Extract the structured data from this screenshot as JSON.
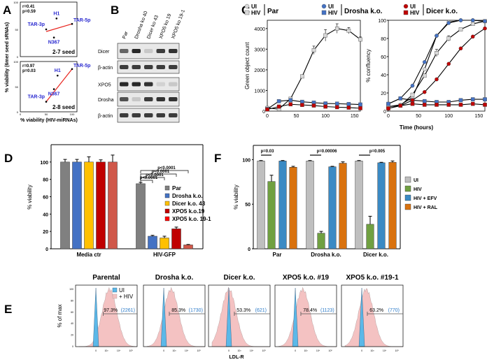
{
  "panel_labels": [
    "A",
    "B",
    "C",
    "D",
    "E",
    "F"
  ],
  "chart_data": [
    {
      "id": "A",
      "type": "scatter",
      "xlabel": "% viability (HIV-miRNAs)",
      "ylabel": "% viability (6mer seed sRNAs)",
      "xlim": [
        0,
        100
      ],
      "ylim": [
        0,
        100
      ],
      "xticks": [
        "0",
        "50",
        "100"
      ],
      "yticks": [
        "0",
        "50",
        "100"
      ],
      "subplots": [
        {
          "name": "2-7 seed",
          "stats": [
            "r=0.41",
            "p=0.59"
          ],
          "points": [
            {
              "label": "TAR-3p",
              "x": 50,
              "y": 50
            },
            {
              "label": "H1",
              "x": 70,
              "y": 70
            },
            {
              "label": "TAR-5p",
              "x": 100,
              "y": 60
            },
            {
              "label": "N367",
              "x": 65,
              "y": 35
            }
          ],
          "fit": [
            [
              50,
              46
            ],
            [
              100,
              60
            ]
          ]
        },
        {
          "name": "2-8 seed",
          "stats": [
            "r=0.97",
            "p=0.03"
          ],
          "points": [
            {
              "label": "TAR-3p",
              "x": 50,
              "y": 20
            },
            {
              "label": "H1",
              "x": 72,
              "y": 72
            },
            {
              "label": "TAR-5p",
              "x": 100,
              "y": 85
            },
            {
              "label": "N367",
              "x": 65,
              "y": 45
            }
          ],
          "fit": [
            [
              50,
              20
            ],
            [
              100,
              85
            ]
          ]
        }
      ]
    },
    {
      "id": "B",
      "type": "western_blot",
      "lanes": [
        "Par",
        "Drosha ko 40",
        "Dicer ko 43",
        "XPO5 ko 19",
        "XPO5 ko 19-1"
      ],
      "blots": [
        {
          "label": "Dicer",
          "intensity": [
            0.6,
            0.9,
            0.1,
            0.8,
            0.85
          ]
        },
        {
          "label": "β-actin",
          "intensity": [
            0.8,
            0.8,
            0.8,
            0.8,
            0.8
          ]
        },
        {
          "label": "XPO5",
          "intensity": [
            0.9,
            0.9,
            0.85,
            0.05,
            0.1
          ]
        },
        {
          "label": "Drosha",
          "intensity": [
            0.7,
            0.1,
            0.8,
            0.85,
            0.85
          ]
        },
        {
          "label": "β-actin",
          "intensity": [
            0.8,
            0.8,
            0.8,
            0.8,
            0.8
          ]
        }
      ]
    },
    {
      "id": "C",
      "type": "line",
      "legend": {
        "ui": "UI",
        "hiv": "HIV",
        "groups": [
          "Par",
          "Drosha k.o.",
          "Dicer k.o."
        ]
      },
      "xlabel": "Time (hours)",
      "x": [
        0,
        20,
        40,
        60,
        80,
        100,
        120,
        140,
        160
      ],
      "xticks": [
        "0",
        "50",
        "100",
        "150"
      ],
      "plots": [
        {
          "ylabel": "Green object count",
          "ylim": [
            0,
            4400
          ],
          "yticks": [
            "0",
            "1000",
            "2000",
            "3000",
            "4000"
          ],
          "series": [
            {
              "name": "Par HIV",
              "marker": "square",
              "color": "#d9d9d9",
              "values": [
                150,
                100,
                600,
                1680,
                2950,
                3670,
                4000,
                3900,
                3470
              ],
              "err": [
                30,
                30,
                50,
                80,
                200,
                280,
                230,
                150,
                120
              ]
            },
            {
              "name": "Drosha k.o. HIV",
              "marker": "square",
              "color": "#4472c4",
              "values": [
                100,
                480,
                530,
                450,
                410,
                370,
                360,
                340,
                320
              ]
            },
            {
              "name": "Dicer k.o. HIV",
              "marker": "square",
              "color": "#c00000",
              "values": [
                80,
                220,
                330,
                300,
                270,
                220,
                190,
                170,
                140
              ]
            }
          ]
        },
        {
          "ylabel": "% confluency",
          "ylim": [
            0,
            100
          ],
          "yticks": [
            "0",
            "20",
            "40",
            "60",
            "80",
            "100"
          ],
          "series": [
            {
              "name": "Par UI",
              "marker": "circle",
              "color": "#d9d9d9",
              "values": [
                5,
                7,
                15,
                46,
                83,
                98,
                100,
                100,
                99
              ]
            },
            {
              "name": "Par HIV",
              "marker": "square",
              "color": "#d9d9d9",
              "values": [
                5,
                6,
                18,
                39,
                64,
                80,
                90,
                96,
                99
              ],
              "err": [
                0,
                0,
                1,
                2,
                4,
                3,
                1,
                1,
                0
              ]
            },
            {
              "name": "Drosha k.o. UI",
              "marker": "circle",
              "color": "#4472c4",
              "values": [
                8,
                14,
                28,
                54,
                83,
                97,
                100,
                100,
                99
              ]
            },
            {
              "name": "Drosha k.o. HIV",
              "marker": "square",
              "color": "#4472c4",
              "values": [
                8,
                14,
                12,
                11,
                10,
                10,
                12,
                13,
                13
              ]
            },
            {
              "name": "Dicer k.o. UI",
              "marker": "circle",
              "color": "#c00000",
              "values": [
                3,
                6,
                12,
                21,
                35,
                52,
                69,
                82,
                91
              ]
            },
            {
              "name": "Dicer k.o. HIV",
              "marker": "square",
              "color": "#c00000",
              "values": [
                3,
                6,
                8,
                7,
                7,
                7,
                7,
                8,
                7
              ]
            }
          ]
        }
      ]
    },
    {
      "id": "D",
      "type": "bar",
      "ylabel": "% viability",
      "ylim": [
        0,
        120
      ],
      "yticks": [
        "0",
        "20",
        "40",
        "60",
        "80",
        "100"
      ],
      "categories": [
        "Media ctr",
        "HIV-GFP"
      ],
      "series": [
        {
          "name": "Par",
          "color": "#808080",
          "values": [
            100,
            75
          ],
          "err": [
            3,
            1.5
          ]
        },
        {
          "name": "Drosha k.o.",
          "color": "#4472c4",
          "values": [
            100,
            14.5
          ],
          "err": [
            3,
            1
          ]
        },
        {
          "name": "Dicer k.o. 43",
          "color": "#ffc000",
          "values": [
            100,
            12.5
          ],
          "err": [
            6,
            2
          ]
        },
        {
          "name": "XPO5 k.o.19",
          "color": "#c00000",
          "values": [
            100,
            23
          ],
          "err": [
            2.5,
            2
          ]
        },
        {
          "name": "XPO5 k.o. 19-1",
          "color": "#d0584a",
          "legend_color": "#ff0000",
          "values": [
            100,
            4.5
          ],
          "err": [
            8,
            0.5
          ]
        }
      ],
      "annotations": [
        "p<0.0001",
        "p<0.0001",
        "p<0.0001",
        "p<0.0001"
      ],
      "legend_position": "right"
    },
    {
      "id": "E",
      "type": "histogram",
      "ylabel": "% of max",
      "xlabel": "LDL-R",
      "yticks": [
        "0",
        "20",
        "40",
        "60",
        "80",
        "100"
      ],
      "xticks": [
        "0",
        "10³",
        "10⁴",
        "10⁵"
      ],
      "legend": [
        "UI",
        "+ HIV"
      ],
      "colors": {
        "ui": "#5bb8e8",
        "hiv": "#f4c2c2"
      },
      "panels": [
        {
          "title": "Parental",
          "percent": "97.3%",
          "mfi": "(2261)",
          "hiv_peak": 0.55
        },
        {
          "title": "Drosha k.o.",
          "percent": "85.3%",
          "mfi": "(1730)",
          "hiv_peak": 0.45
        },
        {
          "title": "Dicer k.o.",
          "percent": "53.3%",
          "mfi": "(621)",
          "hiv_peak": 0.33
        },
        {
          "title": "XPO5 k.o. #19",
          "percent": "78.4%",
          "mfi": "(1123)",
          "hiv_peak": 0.45
        },
        {
          "title": "XPO5 k.o. #19-1",
          "percent": "63.2%",
          "mfi": "(770)",
          "hiv_peak": 0.4
        }
      ]
    },
    {
      "id": "F",
      "type": "bar",
      "ylabel": "% viability",
      "ylim": [
        0,
        100
      ],
      "yticks": [
        "0",
        "50",
        "100"
      ],
      "categories": [
        "Par",
        "Drosha k.o.",
        "Dicer k.o."
      ],
      "series": [
        {
          "name": "UI",
          "color": "#bfbfbf",
          "values": [
            98.5,
            98.5,
            98.5
          ],
          "err": [
            0.5,
            0.5,
            0.5
          ]
        },
        {
          "name": "HIV",
          "color": "#70a041",
          "values": [
            75.5,
            17.5,
            27.5
          ],
          "err": [
            7,
            2,
            9
          ]
        },
        {
          "name": "HIV + EFV",
          "color": "#3a8ac4",
          "values": [
            98.5,
            92,
            96.5
          ],
          "err": [
            0.5,
            0.5,
            0.5
          ]
        },
        {
          "name": "HIV + RAL",
          "color": "#d9720e",
          "values": [
            91.5,
            96,
            97
          ],
          "err": [
            1,
            1.5,
            1.5
          ]
        }
      ],
      "annotations": [
        "p=0.03",
        "p=0.00006",
        "p=0.005"
      ],
      "legend_position": "right"
    }
  ]
}
